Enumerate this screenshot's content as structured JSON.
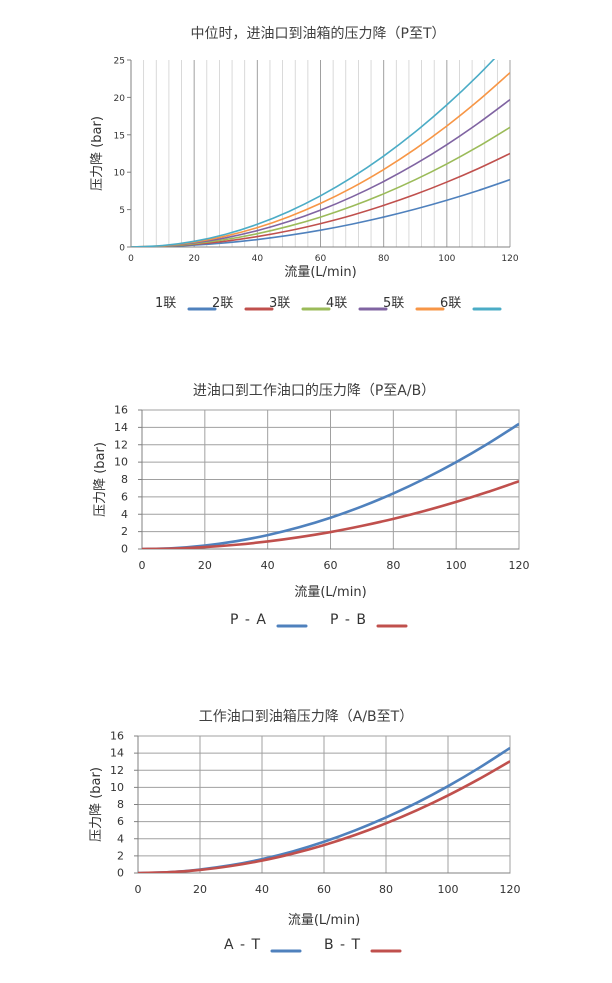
{
  "chart_data": [
    {
      "id": "chart1",
      "type": "line",
      "title": "中位时，进油口到油箱的压力降（P至T）",
      "xlabel": "流量(L/min)",
      "ylabel": "压力降 (bar)",
      "xlim": [
        0,
        120
      ],
      "ylim": [
        0,
        25
      ],
      "xticks": [
        0,
        20,
        40,
        60,
        80,
        100,
        120
      ],
      "yticks": [
        0,
        5,
        10,
        15,
        20,
        25
      ],
      "grid": "vertical",
      "legend": "bottom",
      "x": [
        0,
        10,
        20,
        30,
        40,
        50,
        60,
        70,
        80,
        90,
        100,
        110,
        120
      ],
      "series": [
        {
          "name": "1联",
          "color": "#4f81bd",
          "values": [
            0,
            0.06,
            0.25,
            0.56,
            1.0,
            1.56,
            2.25,
            3.06,
            4.0,
            5.06,
            6.25,
            7.56,
            9.0
          ]
        },
        {
          "name": "2联",
          "color": "#c0504d",
          "values": [
            0,
            0.09,
            0.35,
            0.78,
            1.39,
            2.17,
            3.13,
            4.25,
            5.56,
            7.03,
            8.68,
            10.5,
            12.5
          ]
        },
        {
          "name": "3联",
          "color": "#9bbb59",
          "values": [
            0,
            0.11,
            0.44,
            1.0,
            1.78,
            2.78,
            4.0,
            5.44,
            7.11,
            9.0,
            11.11,
            13.44,
            16.0
          ]
        },
        {
          "name": "4联",
          "color": "#8064a2",
          "values": [
            0,
            0.14,
            0.55,
            1.23,
            2.19,
            3.42,
            4.93,
            6.71,
            8.76,
            11.08,
            13.68,
            16.56,
            19.7
          ]
        },
        {
          "name": "5联",
          "color": "#f79646",
          "values": [
            0,
            0.16,
            0.65,
            1.46,
            2.59,
            4.05,
            5.83,
            7.93,
            10.36,
            13.11,
            16.18,
            19.58,
            23.3
          ]
        },
        {
          "name": "6联",
          "color": "#4bacc6",
          "values": [
            0,
            0.19,
            0.76,
            1.71,
            3.04,
            4.75,
            6.84,
            9.31,
            12.16,
            15.39,
            19.0,
            22.99,
            27.36
          ]
        }
      ]
    },
    {
      "id": "chart2",
      "type": "line",
      "title": "进油口到工作油口的压力降（P至A/B）",
      "xlabel": "流量(L/min)",
      "ylabel": "压力降 (bar)",
      "xlim": [
        0,
        120
      ],
      "ylim": [
        0,
        16
      ],
      "xticks": [
        0,
        20,
        40,
        60,
        80,
        100,
        120
      ],
      "yticks": [
        0,
        2,
        4,
        6,
        8,
        10,
        12,
        14,
        16
      ],
      "grid": "both",
      "legend": "bottom",
      "x": [
        0,
        10,
        20,
        30,
        40,
        50,
        60,
        70,
        80,
        90,
        100,
        110,
        120
      ],
      "series": [
        {
          "name": "P - A",
          "color": "#4f81bd",
          "values": [
            0,
            0.1,
            0.4,
            0.9,
            1.6,
            2.5,
            3.6,
            4.9,
            6.4,
            8.1,
            10.0,
            12.1,
            14.4
          ]
        },
        {
          "name": "P - B",
          "color": "#c0504d",
          "values": [
            0,
            0.05,
            0.22,
            0.49,
            0.87,
            1.36,
            1.95,
            2.66,
            3.47,
            4.39,
            5.42,
            6.56,
            7.8
          ]
        }
      ]
    },
    {
      "id": "chart3",
      "type": "line",
      "title": "工作油口到油箱压力降（A/B至T）",
      "xlabel": "流量(L/min)",
      "ylabel": "压力降 (bar)",
      "xlim": [
        0,
        120
      ],
      "ylim": [
        0,
        16
      ],
      "xticks": [
        0,
        20,
        40,
        60,
        80,
        100,
        120
      ],
      "yticks": [
        0,
        2,
        4,
        6,
        8,
        10,
        12,
        14,
        16
      ],
      "grid": "both",
      "legend": "bottom",
      "x": [
        0,
        10,
        20,
        30,
        40,
        50,
        60,
        70,
        80,
        90,
        100,
        110,
        120
      ],
      "series": [
        {
          "name": "A - T",
          "color": "#4f81bd",
          "values": [
            0,
            0.1,
            0.41,
            0.91,
            1.62,
            2.53,
            3.65,
            4.97,
            6.49,
            8.21,
            10.14,
            12.27,
            14.6
          ]
        },
        {
          "name": "B - T",
          "color": "#c0504d",
          "values": [
            0,
            0.09,
            0.36,
            0.82,
            1.45,
            2.27,
            3.26,
            4.44,
            5.8,
            7.34,
            9.06,
            10.97,
            13.05
          ]
        }
      ]
    }
  ]
}
